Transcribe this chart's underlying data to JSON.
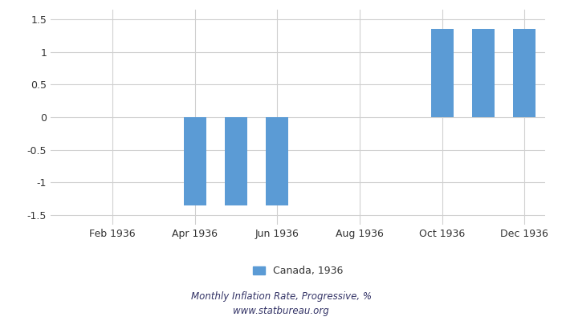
{
  "month_nums": [
    1,
    2,
    3,
    4,
    5,
    6,
    7,
    8,
    9,
    10,
    11,
    12
  ],
  "values": [
    null,
    null,
    null,
    -1.35,
    -1.35,
    -1.35,
    null,
    null,
    null,
    1.35,
    1.35,
    1.35
  ],
  "bar_color": "#5b9bd5",
  "ylim": [
    -1.65,
    1.65
  ],
  "yticks": [
    -1.5,
    -1.0,
    -0.5,
    0.0,
    0.5,
    1.0,
    1.5
  ],
  "xtick_labels": [
    "Feb 1936",
    "Apr 1936",
    "Jun 1936",
    "Aug 1936",
    "Oct 1936",
    "Dec 1936"
  ],
  "xtick_positions": [
    2,
    4,
    6,
    8,
    10,
    12
  ],
  "legend_label": "Canada, 1936",
  "footnote1": "Monthly Inflation Rate, Progressive, %",
  "footnote2": "www.statbureau.org",
  "background_color": "#ffffff",
  "grid_color": "#d0d0d0",
  "bar_width": 0.55
}
